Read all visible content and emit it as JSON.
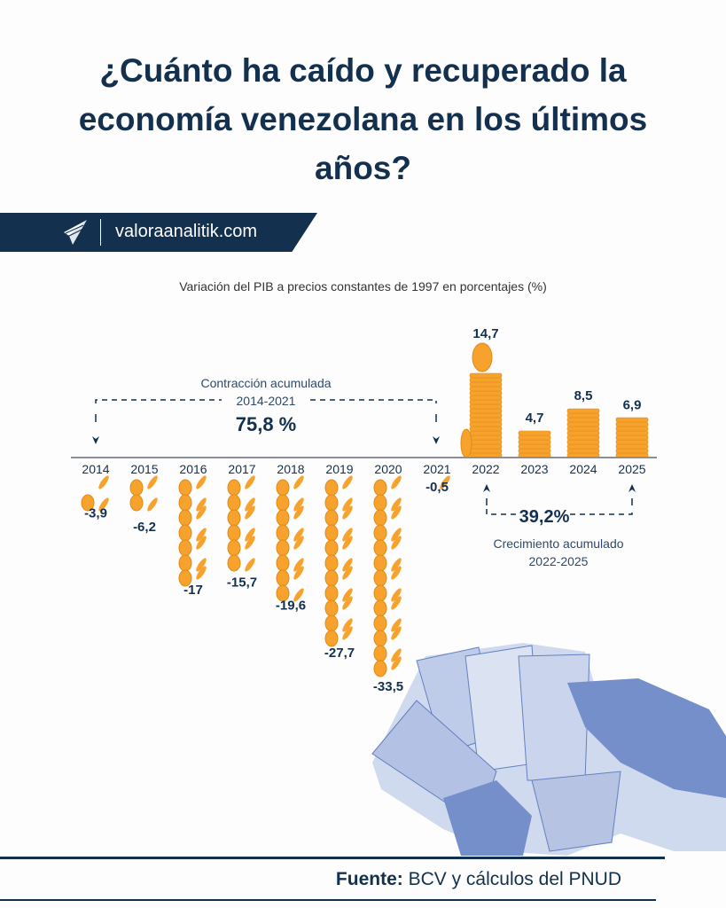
{
  "title": "¿Cuánto ha caído y recuperado la economía venezolana en los últimos años?",
  "brand": {
    "site": "valoraanalitik.com",
    "logo_icon": "paper-plane-logo-icon"
  },
  "footer": {
    "label": "Fuente:",
    "text": " BCV y cálculos del PNUD"
  },
  "colors": {
    "navy": "#13304f",
    "coin": "#f6a22c",
    "coin_dark": "#e08a18",
    "illustration": "#4a6bb5"
  },
  "chart_data": {
    "type": "bar",
    "title": "Variación del PIB a precios constantes de 1997 en porcentajes (%)",
    "categories": [
      "2014",
      "2015",
      "2016",
      "2017",
      "2018",
      "2019",
      "2020",
      "2021",
      "2022",
      "2023",
      "2024",
      "2025"
    ],
    "values": [
      -3.9,
      -6.2,
      -17,
      -15.7,
      -19.6,
      -27.7,
      -33.5,
      -0.5,
      14.7,
      4.7,
      8.5,
      6.9
    ],
    "data_labels": [
      "-3,9",
      "-6,2",
      "-17",
      "-15,7",
      "-19,6",
      "-27,7",
      "-33,5",
      "-0,5",
      "14,7",
      "4,7",
      "8,5",
      "6,9"
    ],
    "annotations": {
      "contraction": {
        "label": "Contracción acumulada",
        "period": "2014-2021",
        "value": "75,8 %"
      },
      "growth": {
        "value": "39,2%",
        "label": "Crecimiento acumulado",
        "period": "2022-2025"
      }
    }
  }
}
